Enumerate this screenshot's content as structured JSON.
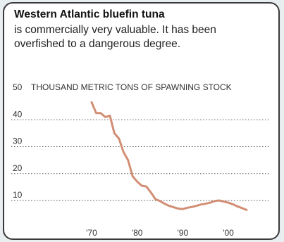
{
  "header": {
    "title": "Western Atlantic bluefin tuna",
    "subtitle": "is commercially very valuable. It has been overfished to a dangerous degree."
  },
  "chart_data": {
    "type": "line",
    "ylabel": "THOUSAND METRIC TONS OF SPAWNING STOCK",
    "ylim": [
      0,
      50
    ],
    "yticks": [
      10,
      20,
      30,
      40,
      50
    ],
    "xlim": [
      1968,
      2005
    ],
    "xticks": [
      1970,
      1980,
      1990,
      2000
    ],
    "xticklabels": [
      "'70",
      "'80",
      "'90",
      "'00"
    ],
    "grid": "dotted horizontal",
    "line_color": "#d28e74",
    "series": [
      {
        "x": [
          1970,
          1971,
          1972,
          1973,
          1974,
          1975,
          1976,
          1977,
          1978,
          1979,
          1980,
          1981,
          1982,
          1983,
          1984,
          1985,
          1986,
          1987,
          1988,
          1989,
          1990,
          1991,
          1992,
          1993,
          1994,
          1995,
          1996,
          1997,
          1998,
          1999,
          2000,
          2001,
          2002,
          2003,
          2004
        ],
        "values": [
          46.5,
          42.5,
          42.5,
          41.0,
          41.5,
          35.0,
          33.0,
          28.0,
          25.0,
          19.0,
          17.0,
          15.5,
          15.2,
          13.0,
          10.5,
          9.8,
          8.8,
          8.0,
          7.5,
          7.0,
          6.8,
          7.3,
          7.6,
          8.0,
          8.5,
          8.8,
          9.2,
          9.8,
          10.0,
          9.6,
          9.2,
          8.6,
          7.8,
          7.2,
          6.5
        ]
      }
    ]
  }
}
